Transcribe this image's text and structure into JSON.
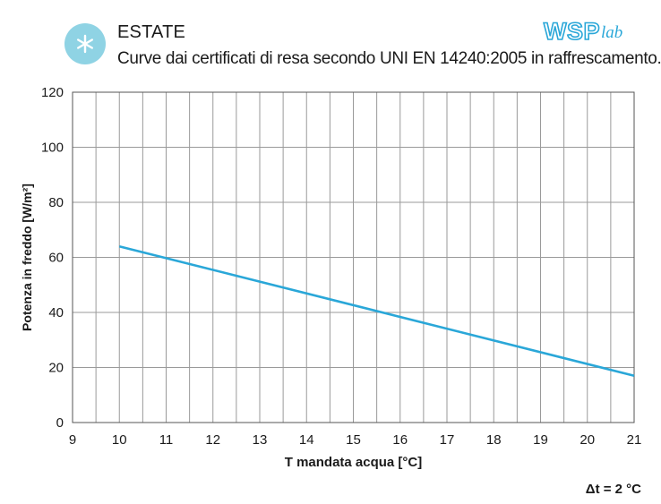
{
  "header": {
    "title": "ESTATE",
    "subtitle": "Curve dai certificati di resa secondo UNI EN 14240:2005 in raffrescamento.",
    "logo_main": "WSP",
    "logo_sub": "lab",
    "icon": "snowflake-icon"
  },
  "colors": {
    "accent": "#2aa7d8",
    "badge": "#8fd3e4",
    "grid": "#9a9a9a"
  },
  "chart_data": {
    "type": "line",
    "title": "",
    "xlabel": "T mandata acqua [°C]",
    "ylabel": "Potenza in freddo [W/m²]",
    "xlim": [
      9,
      21
    ],
    "ylim": [
      0,
      120
    ],
    "xticks": [
      9,
      10,
      11,
      12,
      13,
      14,
      15,
      16,
      17,
      18,
      19,
      20,
      21
    ],
    "yticks": [
      0,
      20,
      40,
      60,
      80,
      100,
      120
    ],
    "grid": true,
    "series": [
      {
        "x": [
          10,
          21
        ],
        "y": [
          64,
          17
        ],
        "color": "#2aa7d8"
      }
    ]
  },
  "note": "Δt = 2 °C"
}
